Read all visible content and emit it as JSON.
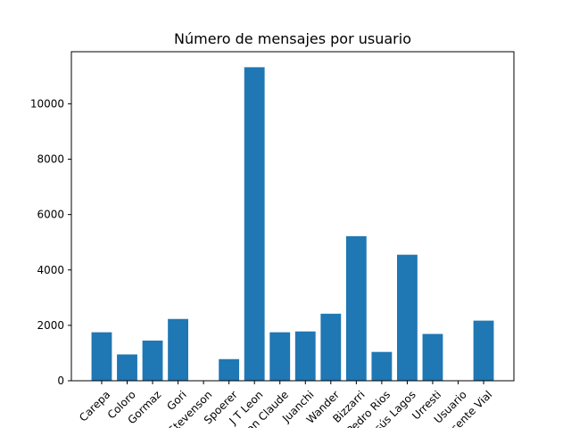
{
  "chart_data": {
    "type": "bar",
    "title": "Número de mensajes por usuario",
    "xlabel": "",
    "ylabel": "",
    "categories": [
      "Carepa",
      "Coloro",
      "Gormaz",
      "Gori",
      "Stevenson",
      "Spoerer",
      "J T Leon",
      "Jean Claude",
      "Juanchi",
      "Wander",
      "Bizzarri",
      "Pedro Rios",
      "Jesús Lagos",
      "Urresti",
      "Usuario",
      "Vicente Vial"
    ],
    "values": [
      1750,
      950,
      1450,
      2230,
      0,
      780,
      11320,
      1750,
      1780,
      2420,
      5220,
      1040,
      4550,
      1690,
      0,
      2170
    ],
    "ylim": [
      0,
      11880
    ],
    "yticks": [
      0,
      2000,
      4000,
      6000,
      8000,
      10000
    ],
    "bar_color": "#1f77b4",
    "grid": false
  }
}
